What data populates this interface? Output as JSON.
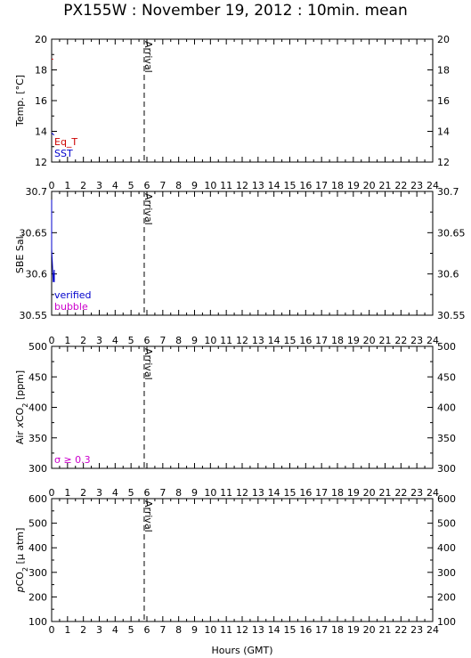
{
  "title": "PX155W : November 19, 2012 : 10min. mean",
  "xlabel": "Hours (GMT)",
  "marker_label": "Arrival",
  "colors": {
    "axis": "#000000",
    "marker": "#555555",
    "eq_t": "#cc0000",
    "sst": "#0000cc",
    "verified": "#0000cc",
    "bubble": "#cc00cc",
    "sigma": "#cc00cc"
  },
  "chart_data": [
    {
      "type": "line",
      "ylabel": "Temp. [°C]",
      "xlim": [
        0,
        24
      ],
      "ylim": [
        12,
        20
      ],
      "y_ticks": [
        "12",
        "14",
        "16",
        "18",
        "20"
      ],
      "x_ticks": [],
      "marker_x": 5.83,
      "legend_placement": "bottom-left",
      "series": [
        {
          "name": "Eq_T",
          "color": "#cc0000",
          "x": [
            0.0,
            0.1
          ],
          "y": [
            18.7,
            18.7
          ]
        },
        {
          "name": "SST",
          "color": "#0000cc",
          "x": [
            0.0,
            0.05,
            0.1,
            0.15
          ],
          "y": [
            13.9,
            13.85,
            13.8,
            13.75
          ]
        }
      ]
    },
    {
      "type": "line",
      "ylabel": "SBE Sal.",
      "xlim": [
        0,
        24
      ],
      "ylim": [
        30.55,
        30.7
      ],
      "y_ticks": [
        "30.55",
        "30.6",
        "30.65",
        "30.7"
      ],
      "x_ticks": [
        "0",
        "1",
        "2",
        "3",
        "4",
        "5",
        "6",
        "7",
        "8",
        "9",
        "10",
        "11",
        "12",
        "13",
        "14",
        "15",
        "16",
        "17",
        "18",
        "19",
        "20",
        "21",
        "22",
        "23",
        "24"
      ],
      "marker_x": 5.83,
      "legend_placement": "bottom-left",
      "series": [
        {
          "name": "verified",
          "color": "#0000cc",
          "x": [
            0.0,
            0.0,
            0.08,
            0.1,
            0.17,
            0.17
          ],
          "y": [
            30.69,
            30.63,
            30.6,
            30.59,
            30.605,
            30.59
          ]
        },
        {
          "name": "bubble",
          "color": "#cc00cc",
          "x": [],
          "y": []
        }
      ]
    },
    {
      "type": "line",
      "ylabel": "Air xCO2 [ppm]",
      "xlim": [
        0,
        24
      ],
      "ylim": [
        300,
        500
      ],
      "y_ticks": [
        "300",
        "350",
        "400",
        "450",
        "500"
      ],
      "x_ticks": [
        "0",
        "1",
        "2",
        "3",
        "4",
        "5",
        "6",
        "7",
        "8",
        "9",
        "10",
        "11",
        "12",
        "13",
        "14",
        "15",
        "16",
        "17",
        "18",
        "19",
        "20",
        "21",
        "22",
        "23",
        "24"
      ],
      "marker_x": 5.83,
      "legend_placement": "bottom-left",
      "annotation": "σ ≥ 0.3",
      "series": []
    },
    {
      "type": "line",
      "ylabel": "pCO2 [μ atm]",
      "xlim": [
        0,
        24
      ],
      "ylim": [
        100,
        600
      ],
      "y_ticks": [
        "100",
        "200",
        "300",
        "400",
        "500",
        "600"
      ],
      "x_ticks": [
        "0",
        "1",
        "2",
        "3",
        "4",
        "5",
        "6",
        "7",
        "8",
        "9",
        "10",
        "11",
        "12",
        "13",
        "14",
        "15",
        "16",
        "17",
        "18",
        "19",
        "20",
        "21",
        "22",
        "23",
        "24"
      ],
      "marker_x": 5.83,
      "series": []
    }
  ]
}
